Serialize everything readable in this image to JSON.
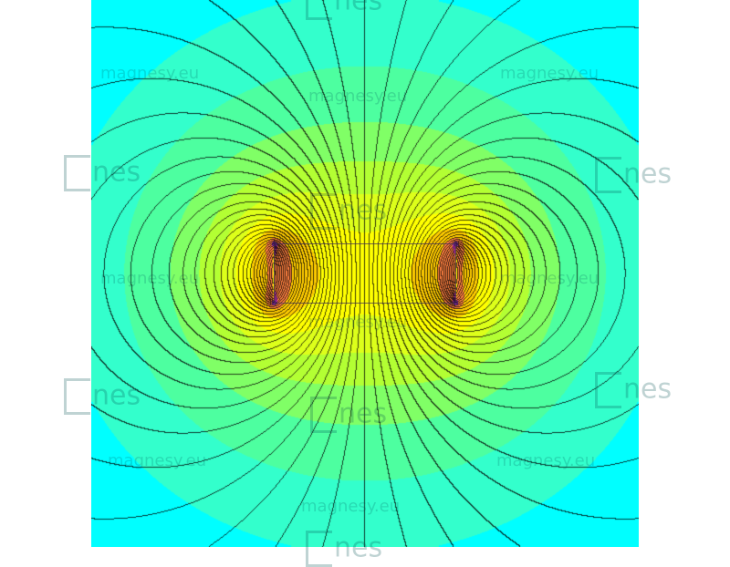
{
  "diagram": {
    "watermark_text": "magnesy.eu",
    "logo_text": "nes",
    "colors": {
      "background_far": "#00ffff",
      "band_colors": [
        "#00ffff",
        "#33ffcc",
        "#4dffa0",
        "#80ff66",
        "#b3ff33",
        "#ddff1a",
        "#ffff00",
        "#ffcc00",
        "#ff8040",
        "#cc33cc"
      ],
      "field_line": "#333333",
      "magnet_outline": "#3c285a"
    }
  }
}
